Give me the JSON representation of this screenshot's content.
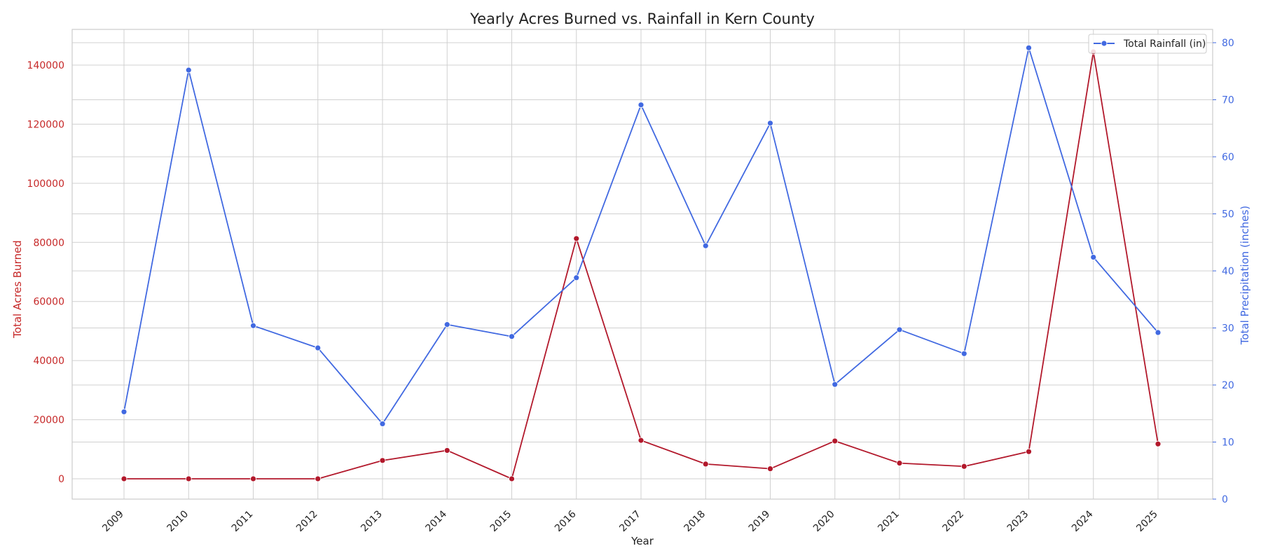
{
  "chart_data": {
    "type": "line",
    "title": "Yearly Acres Burned vs. Rainfall in Kern County",
    "xlabel": "Year",
    "ylabel_left": "Total Acres Burned",
    "ylabel_right": "Total Precipitation (inches)",
    "x": [
      "2009",
      "2010",
      "2011",
      "2012",
      "2013",
      "2014",
      "2015",
      "2016",
      "2017",
      "2018",
      "2019",
      "2020",
      "2021",
      "2022",
      "2023",
      "2024",
      "2025"
    ],
    "ylim_left": [
      -7000,
      152000
    ],
    "ylim_right": [
      0,
      82
    ],
    "yticks_left": [
      0,
      20000,
      40000,
      60000,
      80000,
      100000,
      120000,
      140000
    ],
    "yticks_right": [
      0,
      10,
      20,
      30,
      40,
      50,
      60,
      70,
      80
    ],
    "grid": true,
    "legend_position": "top-right",
    "series": [
      {
        "axis": "left",
        "color": "#b2182b",
        "values": [
          0,
          0,
          0,
          0,
          6200,
          9600,
          0,
          81300,
          13000,
          5000,
          3400,
          12800,
          5300,
          4200,
          9200,
          144500,
          11800
        ]
      },
      {
        "name": "Total Rainfall (in)",
        "axis": "right",
        "color": "#4169e1",
        "values": [
          15.3,
          75.2,
          30.4,
          26.5,
          13.2,
          30.6,
          28.5,
          38.8,
          69.1,
          44.4,
          65.9,
          20.1,
          29.7,
          25.5,
          79.1,
          42.4,
          29.2
        ]
      }
    ]
  },
  "colors": {
    "left_axis": "#c62828",
    "right_axis": "#4169e1",
    "grid": "#d0d0d0",
    "spine": "#cccccc",
    "text": "#222222"
  }
}
